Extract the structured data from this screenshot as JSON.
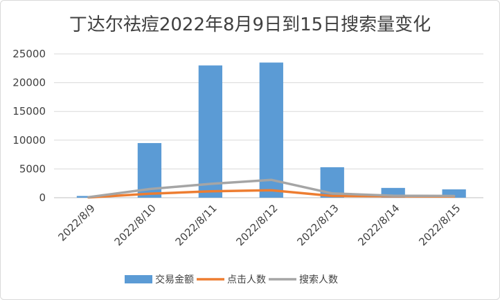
{
  "chart_data": {
    "type": "bar",
    "title": "丁达尔祛痘2022年8月9日到15日搜索量变化",
    "xlabel": "",
    "ylabel": "",
    "categories": [
      "2022/8/9",
      "2022/8/10",
      "2022/8/11",
      "2022/8/12",
      "2022/8/13",
      "2022/8/14",
      "2022/8/15"
    ],
    "ylim": [
      0,
      25000
    ],
    "yticks": [
      0,
      5000,
      10000,
      15000,
      20000,
      25000
    ],
    "grid": true,
    "legend_position": "bottom",
    "series": [
      {
        "name": "交易金额",
        "type": "bar",
        "color": "#5b9bd5",
        "values": [
          300,
          9500,
          23000,
          23500,
          5300,
          1700,
          1450
        ]
      },
      {
        "name": "点击人数",
        "type": "line",
        "color": "#ed7d31",
        "values": [
          50,
          700,
          1100,
          1300,
          300,
          250,
          200
        ]
      },
      {
        "name": "搜索人数",
        "type": "line",
        "color": "#a5a5a5",
        "values": [
          100,
          1500,
          2400,
          3100,
          750,
          350,
          300
        ]
      }
    ]
  }
}
